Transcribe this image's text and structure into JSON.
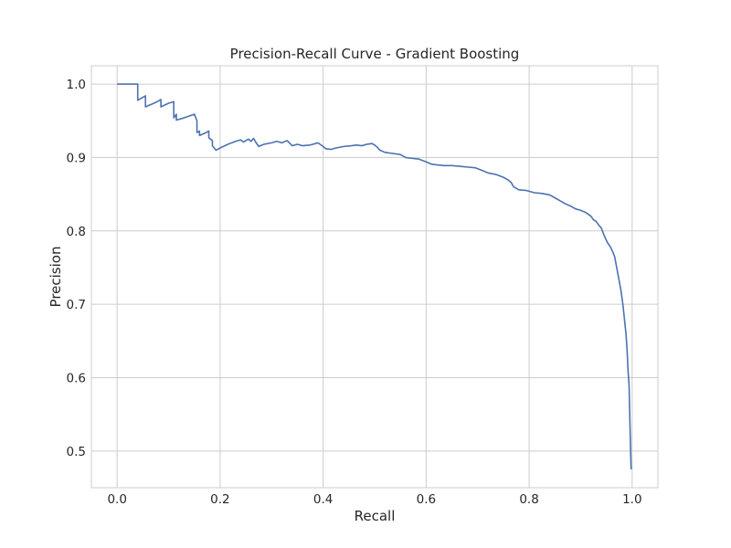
{
  "chart_data": {
    "type": "line",
    "title": "Precision-Recall Curve - Gradient Boosting",
    "xlabel": "Recall",
    "ylabel": "Precision",
    "xlim": [
      -0.05,
      1.05
    ],
    "ylim": [
      0.45,
      1.025
    ],
    "x_ticks": [
      0.0,
      0.2,
      0.4,
      0.6,
      0.8,
      1.0
    ],
    "x_tick_labels": [
      "0.0",
      "0.2",
      "0.4",
      "0.6",
      "0.8",
      "1.0"
    ],
    "y_ticks": [
      0.5,
      0.6,
      0.7,
      0.8,
      0.9,
      1.0
    ],
    "y_tick_labels": [
      "0.5",
      "0.6",
      "0.7",
      "0.8",
      "0.9",
      "1.0"
    ],
    "grid": true,
    "series": [
      {
        "color": "#4c72b0",
        "points": [
          [
            0.0,
            1.0
          ],
          [
            0.04,
            1.0
          ],
          [
            0.04,
            0.978
          ],
          [
            0.055,
            0.984
          ],
          [
            0.055,
            0.969
          ],
          [
            0.075,
            0.975
          ],
          [
            0.085,
            0.979
          ],
          [
            0.085,
            0.969
          ],
          [
            0.1,
            0.974
          ],
          [
            0.11,
            0.976
          ],
          [
            0.11,
            0.954
          ],
          [
            0.115,
            0.959
          ],
          [
            0.115,
            0.951
          ],
          [
            0.13,
            0.954
          ],
          [
            0.15,
            0.959
          ],
          [
            0.155,
            0.95
          ],
          [
            0.155,
            0.934
          ],
          [
            0.16,
            0.936
          ],
          [
            0.16,
            0.93
          ],
          [
            0.17,
            0.933
          ],
          [
            0.178,
            0.936
          ],
          [
            0.178,
            0.927
          ],
          [
            0.185,
            0.923
          ],
          [
            0.185,
            0.916
          ],
          [
            0.192,
            0.91
          ],
          [
            0.2,
            0.913
          ],
          [
            0.215,
            0.918
          ],
          [
            0.23,
            0.922
          ],
          [
            0.24,
            0.924
          ],
          [
            0.245,
            0.921
          ],
          [
            0.255,
            0.925
          ],
          [
            0.26,
            0.922
          ],
          [
            0.265,
            0.926
          ],
          [
            0.27,
            0.92
          ],
          [
            0.275,
            0.915
          ],
          [
            0.285,
            0.918
          ],
          [
            0.3,
            0.92
          ],
          [
            0.31,
            0.922
          ],
          [
            0.32,
            0.92
          ],
          [
            0.33,
            0.923
          ],
          [
            0.34,
            0.916
          ],
          [
            0.35,
            0.918
          ],
          [
            0.36,
            0.916
          ],
          [
            0.375,
            0.917
          ],
          [
            0.385,
            0.919
          ],
          [
            0.39,
            0.92
          ],
          [
            0.4,
            0.915
          ],
          [
            0.405,
            0.912
          ],
          [
            0.415,
            0.911
          ],
          [
            0.425,
            0.913
          ],
          [
            0.44,
            0.915
          ],
          [
            0.455,
            0.916
          ],
          [
            0.465,
            0.917
          ],
          [
            0.475,
            0.916
          ],
          [
            0.485,
            0.918
          ],
          [
            0.495,
            0.919
          ],
          [
            0.5,
            0.917
          ],
          [
            0.505,
            0.914
          ],
          [
            0.51,
            0.91
          ],
          [
            0.52,
            0.907
          ],
          [
            0.53,
            0.906
          ],
          [
            0.55,
            0.904
          ],
          [
            0.56,
            0.9
          ],
          [
            0.57,
            0.899
          ],
          [
            0.585,
            0.898
          ],
          [
            0.6,
            0.894
          ],
          [
            0.61,
            0.891
          ],
          [
            0.62,
            0.89
          ],
          [
            0.635,
            0.889
          ],
          [
            0.65,
            0.889
          ],
          [
            0.665,
            0.888
          ],
          [
            0.68,
            0.887
          ],
          [
            0.695,
            0.886
          ],
          [
            0.71,
            0.882
          ],
          [
            0.72,
            0.879
          ],
          [
            0.735,
            0.877
          ],
          [
            0.75,
            0.873
          ],
          [
            0.76,
            0.869
          ],
          [
            0.765,
            0.866
          ],
          [
            0.77,
            0.86
          ],
          [
            0.78,
            0.856
          ],
          [
            0.795,
            0.855
          ],
          [
            0.81,
            0.852
          ],
          [
            0.825,
            0.851
          ],
          [
            0.84,
            0.849
          ],
          [
            0.85,
            0.845
          ],
          [
            0.86,
            0.841
          ],
          [
            0.87,
            0.837
          ],
          [
            0.88,
            0.834
          ],
          [
            0.89,
            0.83
          ],
          [
            0.9,
            0.828
          ],
          [
            0.91,
            0.825
          ],
          [
            0.92,
            0.82
          ],
          [
            0.925,
            0.815
          ],
          [
            0.93,
            0.813
          ],
          [
            0.935,
            0.808
          ],
          [
            0.94,
            0.804
          ],
          [
            0.945,
            0.795
          ],
          [
            0.948,
            0.79
          ],
          [
            0.952,
            0.784
          ],
          [
            0.958,
            0.778
          ],
          [
            0.962,
            0.772
          ],
          [
            0.966,
            0.765
          ],
          [
            0.97,
            0.75
          ],
          [
            0.974,
            0.735
          ],
          [
            0.978,
            0.72
          ],
          [
            0.982,
            0.7
          ],
          [
            0.985,
            0.68
          ],
          [
            0.988,
            0.66
          ],
          [
            0.99,
            0.64
          ],
          [
            0.992,
            0.61
          ],
          [
            0.994,
            0.59
          ],
          [
            0.995,
            0.56
          ],
          [
            0.996,
            0.53
          ],
          [
            0.997,
            0.5
          ],
          [
            0.998,
            0.475
          ]
        ]
      }
    ]
  }
}
